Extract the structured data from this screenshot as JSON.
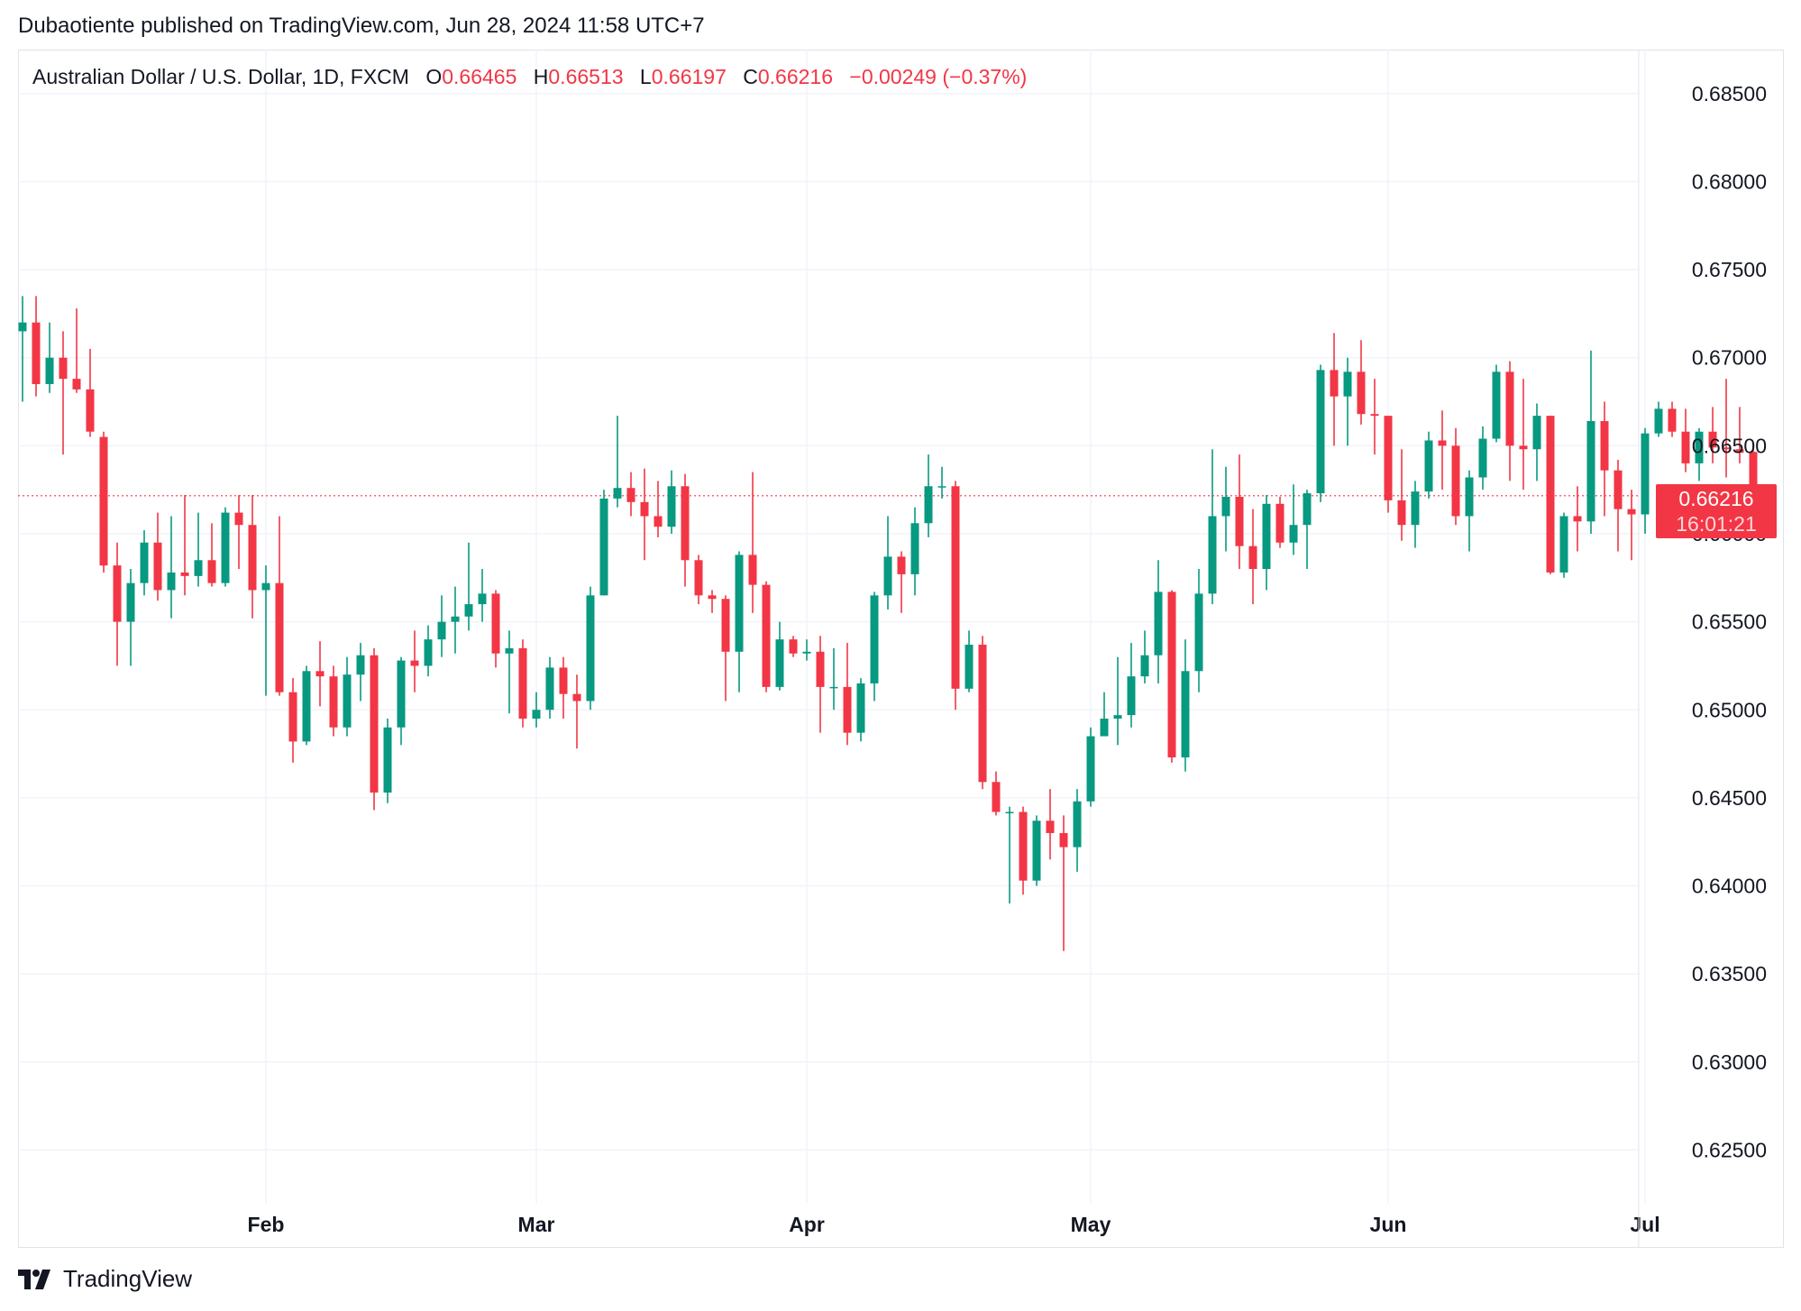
{
  "publisher": "Dubaotiente published on TradingView.com, Jun 28, 2024 11:58 UTC+7",
  "brand": {
    "name": "TradingView",
    "logo": "tradingview-logo-icon"
  },
  "legend": {
    "symbol": "Australian Dollar / U.S. Dollar, 1D, FXCM",
    "o_label": "O",
    "o_value": "0.66465",
    "h_label": "H",
    "h_value": "0.66513",
    "l_label": "L",
    "l_value": "0.66197",
    "c_label": "C",
    "c_value": "0.66216",
    "change": "−0.00249 (−0.37%)"
  },
  "price_label": {
    "price": "0.66216",
    "countdown": "16:01:21"
  },
  "colors": {
    "up": "#089981",
    "down": "#f23645",
    "grid": "#f0f3fa",
    "text": "#131722"
  },
  "chart_data": {
    "type": "candlestick",
    "title": "Australian Dollar / U.S. Dollar, 1D, FXCM",
    "ylim": [
      0.622,
      0.6875
    ],
    "yticks": [
      "0.68500",
      "0.68000",
      "0.67500",
      "0.67000",
      "0.66500",
      "0.66000",
      "0.65500",
      "0.65000",
      "0.64500",
      "0.64000",
      "0.63500",
      "0.63000",
      "0.62500"
    ],
    "xticks": [
      {
        "label": "Feb",
        "index": 18
      },
      {
        "label": "Mar",
        "index": 38
      },
      {
        "label": "Apr",
        "index": 58
      },
      {
        "label": "May",
        "index": 79
      },
      {
        "label": "Jun",
        "index": 101
      },
      {
        "label": "Jul",
        "index": 120
      }
    ],
    "grid": true,
    "last_price_line": 0.66216,
    "candles": [
      [
        0.6715,
        0.672,
        0.6675,
        0.6735
      ],
      [
        0.672,
        0.6685,
        0.6678,
        0.6735
      ],
      [
        0.6685,
        0.67,
        0.668,
        0.672
      ],
      [
        0.67,
        0.6688,
        0.6645,
        0.6715
      ],
      [
        0.6688,
        0.6682,
        0.668,
        0.6728
      ],
      [
        0.6682,
        0.6658,
        0.6655,
        0.6705
      ],
      [
        0.6655,
        0.6582,
        0.6578,
        0.6658
      ],
      [
        0.6582,
        0.655,
        0.6525,
        0.6595
      ],
      [
        0.655,
        0.6572,
        0.6525,
        0.658
      ],
      [
        0.6572,
        0.6595,
        0.6565,
        0.6602
      ],
      [
        0.6595,
        0.6568,
        0.6562,
        0.6612
      ],
      [
        0.6568,
        0.6578,
        0.6552,
        0.661
      ],
      [
        0.6578,
        0.6576,
        0.6565,
        0.6622
      ],
      [
        0.6576,
        0.6585,
        0.657,
        0.6612
      ],
      [
        0.6585,
        0.6572,
        0.657,
        0.6606
      ],
      [
        0.6572,
        0.6612,
        0.657,
        0.6615
      ],
      [
        0.6612,
        0.6605,
        0.658,
        0.6622
      ],
      [
        0.6605,
        0.6568,
        0.6552,
        0.6622
      ],
      [
        0.6568,
        0.6572,
        0.6508,
        0.6582
      ],
      [
        0.6572,
        0.651,
        0.6508,
        0.661
      ],
      [
        0.651,
        0.6482,
        0.647,
        0.6518
      ],
      [
        0.6482,
        0.6522,
        0.648,
        0.6525
      ],
      [
        0.6522,
        0.6519,
        0.6502,
        0.6539
      ],
      [
        0.6519,
        0.649,
        0.6485,
        0.6525
      ],
      [
        0.649,
        0.652,
        0.6485,
        0.653
      ],
      [
        0.652,
        0.6531,
        0.6505,
        0.6538
      ],
      [
        0.6531,
        0.6453,
        0.6443,
        0.6535
      ],
      [
        0.6453,
        0.649,
        0.6447,
        0.6495
      ],
      [
        0.649,
        0.6528,
        0.648,
        0.653
      ],
      [
        0.6528,
        0.6525,
        0.651,
        0.6545
      ],
      [
        0.6525,
        0.654,
        0.6519,
        0.6548
      ],
      [
        0.654,
        0.655,
        0.653,
        0.6565
      ],
      [
        0.655,
        0.6553,
        0.6532,
        0.657
      ],
      [
        0.6553,
        0.656,
        0.6545,
        0.6595
      ],
      [
        0.656,
        0.6566,
        0.655,
        0.658
      ],
      [
        0.6566,
        0.6532,
        0.6524,
        0.6568
      ],
      [
        0.6532,
        0.6535,
        0.6498,
        0.6545
      ],
      [
        0.6535,
        0.6495,
        0.649,
        0.654
      ],
      [
        0.6495,
        0.65,
        0.649,
        0.651
      ],
      [
        0.65,
        0.6524,
        0.6495,
        0.653
      ],
      [
        0.6524,
        0.6509,
        0.6495,
        0.653
      ],
      [
        0.6509,
        0.6505,
        0.6478,
        0.652
      ],
      [
        0.6505,
        0.6565,
        0.65,
        0.657
      ],
      [
        0.6565,
        0.662,
        0.6565,
        0.6625
      ],
      [
        0.662,
        0.6626,
        0.6615,
        0.6667
      ],
      [
        0.6626,
        0.6618,
        0.661,
        0.6635
      ],
      [
        0.6618,
        0.661,
        0.6585,
        0.6637
      ],
      [
        0.661,
        0.6604,
        0.6598,
        0.663
      ],
      [
        0.6604,
        0.6627,
        0.66,
        0.6636
      ],
      [
        0.6627,
        0.6585,
        0.657,
        0.6634
      ],
      [
        0.6585,
        0.6565,
        0.656,
        0.6588
      ],
      [
        0.6565,
        0.6563,
        0.6555,
        0.6568
      ],
      [
        0.6563,
        0.6533,
        0.6505,
        0.6565
      ],
      [
        0.6533,
        0.6588,
        0.651,
        0.659
      ],
      [
        0.6588,
        0.6571,
        0.6555,
        0.6635
      ],
      [
        0.6571,
        0.6513,
        0.651,
        0.6573
      ],
      [
        0.6513,
        0.654,
        0.6511,
        0.655
      ],
      [
        0.654,
        0.6532,
        0.653,
        0.6542
      ],
      [
        0.6532,
        0.6533,
        0.6528,
        0.654
      ],
      [
        0.6533,
        0.6513,
        0.6487,
        0.6542
      ],
      [
        0.6513,
        0.6513,
        0.65,
        0.6535
      ],
      [
        0.6513,
        0.6487,
        0.648,
        0.6538
      ],
      [
        0.6487,
        0.6515,
        0.6482,
        0.6518
      ],
      [
        0.6515,
        0.6565,
        0.6505,
        0.6567
      ],
      [
        0.6565,
        0.6587,
        0.6557,
        0.661
      ],
      [
        0.6587,
        0.6577,
        0.6555,
        0.659
      ],
      [
        0.6577,
        0.6606,
        0.6565,
        0.6615
      ],
      [
        0.6606,
        0.6627,
        0.6598,
        0.6645
      ],
      [
        0.6627,
        0.6627,
        0.662,
        0.6638
      ],
      [
        0.6627,
        0.6512,
        0.65,
        0.663
      ],
      [
        0.6512,
        0.6537,
        0.651,
        0.6545
      ],
      [
        0.6537,
        0.6459,
        0.6455,
        0.6542
      ],
      [
        0.6459,
        0.6442,
        0.644,
        0.6465
      ],
      [
        0.6442,
        0.6442,
        0.639,
        0.6445
      ],
      [
        0.6442,
        0.6403,
        0.6395,
        0.6445
      ],
      [
        0.6403,
        0.6437,
        0.64,
        0.644
      ],
      [
        0.6437,
        0.643,
        0.6415,
        0.6455
      ],
      [
        0.643,
        0.6422,
        0.6363,
        0.644
      ],
      [
        0.6422,
        0.6448,
        0.6408,
        0.6455
      ],
      [
        0.6448,
        0.6485,
        0.6445,
        0.649
      ],
      [
        0.6485,
        0.6495,
        0.6485,
        0.651
      ],
      [
        0.6495,
        0.6497,
        0.648,
        0.653
      ],
      [
        0.6497,
        0.6519,
        0.649,
        0.6538
      ],
      [
        0.6519,
        0.6531,
        0.6515,
        0.6545
      ],
      [
        0.6531,
        0.6567,
        0.6515,
        0.6585
      ],
      [
        0.6567,
        0.6473,
        0.647,
        0.6568
      ],
      [
        0.6473,
        0.6522,
        0.6465,
        0.654
      ],
      [
        0.6522,
        0.6566,
        0.651,
        0.658
      ],
      [
        0.6566,
        0.661,
        0.656,
        0.6648
      ],
      [
        0.661,
        0.6621,
        0.659,
        0.6638
      ],
      [
        0.6621,
        0.6593,
        0.658,
        0.6645
      ],
      [
        0.6593,
        0.658,
        0.656,
        0.6614
      ],
      [
        0.658,
        0.6617,
        0.6568,
        0.6622
      ],
      [
        0.6617,
        0.6595,
        0.6592,
        0.6621
      ],
      [
        0.6595,
        0.6605,
        0.6588,
        0.6628
      ],
      [
        0.6605,
        0.6623,
        0.658,
        0.6625
      ],
      [
        0.6623,
        0.6693,
        0.6618,
        0.6696
      ],
      [
        0.6693,
        0.6678,
        0.665,
        0.6714
      ],
      [
        0.6678,
        0.6692,
        0.665,
        0.67
      ],
      [
        0.6692,
        0.6668,
        0.6662,
        0.671
      ],
      [
        0.6668,
        0.6667,
        0.6645,
        0.6688
      ],
      [
        0.6667,
        0.6619,
        0.6612,
        0.6667
      ],
      [
        0.6619,
        0.6605,
        0.6596,
        0.6648
      ],
      [
        0.6605,
        0.6624,
        0.6592,
        0.663
      ],
      [
        0.6624,
        0.6653,
        0.662,
        0.6658
      ],
      [
        0.6653,
        0.665,
        0.6625,
        0.667
      ],
      [
        0.665,
        0.661,
        0.6605,
        0.666
      ],
      [
        0.661,
        0.6632,
        0.659,
        0.6636
      ],
      [
        0.6632,
        0.6654,
        0.6625,
        0.6661
      ],
      [
        0.6654,
        0.6692,
        0.6652,
        0.6696
      ],
      [
        0.6692,
        0.665,
        0.663,
        0.6698
      ],
      [
        0.665,
        0.6648,
        0.6625,
        0.6688
      ],
      [
        0.6648,
        0.6667,
        0.663,
        0.6674
      ],
      [
        0.6667,
        0.6578,
        0.6577,
        0.6667
      ],
      [
        0.6578,
        0.661,
        0.6575,
        0.6612
      ],
      [
        0.661,
        0.6607,
        0.659,
        0.6627
      ],
      [
        0.6607,
        0.6664,
        0.66,
        0.6704
      ],
      [
        0.6664,
        0.6636,
        0.661,
        0.6675
      ],
      [
        0.6636,
        0.6614,
        0.659,
        0.6642
      ],
      [
        0.6614,
        0.6611,
        0.6585,
        0.6625
      ],
      [
        0.6611,
        0.6657,
        0.66,
        0.666
      ],
      [
        0.6657,
        0.6671,
        0.6655,
        0.6675
      ],
      [
        0.6671,
        0.6658,
        0.6655,
        0.6675
      ],
      [
        0.6658,
        0.664,
        0.6635,
        0.6671
      ],
      [
        0.664,
        0.6658,
        0.663,
        0.666
      ],
      [
        0.6658,
        0.6649,
        0.664,
        0.6672
      ],
      [
        0.6649,
        0.6648,
        0.6632,
        0.6688
      ],
      [
        0.6648,
        0.6646,
        0.664,
        0.6672
      ],
      [
        0.66465,
        0.66216,
        0.66197,
        0.66513
      ]
    ]
  }
}
